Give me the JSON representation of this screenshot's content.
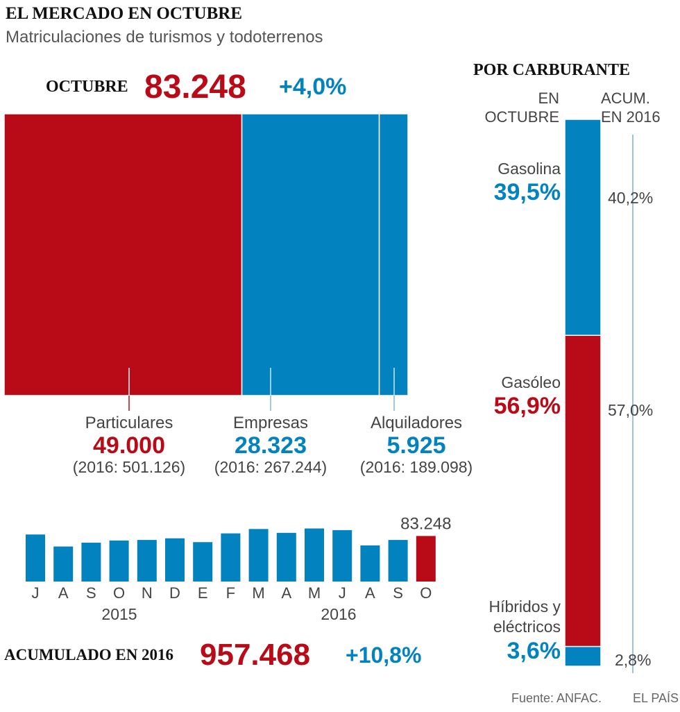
{
  "header": {
    "title": "EL MERCADO EN OCTUBRE",
    "subtitle": "Matriculaciones de turismos y todoterrenos"
  },
  "october": {
    "label": "OCTUBRE",
    "total": "83.248",
    "change": "+4,0%"
  },
  "segments": [
    {
      "name": "Particulares",
      "value": 49000,
      "value_label": "49.000",
      "ytd_label": "(2016: 501.126)",
      "color": "#b90a17"
    },
    {
      "name": "Empresas",
      "value": 28323,
      "value_label": "28.323",
      "ytd_label": "(2016: 267.244)",
      "color": "#0283c0"
    },
    {
      "name": "Alquiladores",
      "value": 5925,
      "value_label": "5.925",
      "ytd_label": "(2016: 189.098)",
      "color": "#0283c0"
    }
  ],
  "monthly": {
    "months": [
      "J",
      "A",
      "S",
      "O",
      "N",
      "D",
      "E",
      "F",
      "M",
      "A",
      "M",
      "J",
      "A",
      "S",
      "O"
    ],
    "values": [
      86000,
      64000,
      71000,
      75000,
      76000,
      79000,
      72000,
      88000,
      96000,
      89000,
      97000,
      94000,
      66000,
      76000,
      83248
    ],
    "highlight_label": "83.248",
    "year_labels": [
      "2015",
      "2016"
    ],
    "color": "#0283c0",
    "highlight_color": "#b90a17"
  },
  "ytd": {
    "label": "ACUMULADO EN 2016",
    "total": "957.468",
    "change": "+10,8%"
  },
  "fuel": {
    "title": "POR CARBURANTE",
    "col_october": "EN OCTUBRE",
    "col_ytd": "ACUM. EN 2016",
    "items": [
      {
        "name": "Gasolina",
        "october": 39.5,
        "october_label": "39,5%",
        "ytd_label": "40,2%",
        "color": "#0283c0"
      },
      {
        "name": "Gasóleo",
        "october": 56.9,
        "october_label": "56,9%",
        "ytd_label": "57,0%",
        "color": "#b90a17"
      },
      {
        "name": "Híbridos y eléctricos",
        "october": 3.6,
        "october_label": "3,6%",
        "ytd_label": "2,8%",
        "color": "#0283c0"
      }
    ]
  },
  "chart_data": [
    {
      "type": "bar",
      "title": "OCTUBRE",
      "categories": [
        "Particulares",
        "Empresas",
        "Alquiladores"
      ],
      "values": [
        49000,
        28323,
        5925
      ]
    },
    {
      "type": "bar",
      "categories": [
        "J",
        "A",
        "S",
        "O",
        "N",
        "D",
        "E",
        "F",
        "M",
        "A",
        "M",
        "J",
        "A",
        "S",
        "O"
      ],
      "values": [
        86000,
        64000,
        71000,
        75000,
        76000,
        79000,
        72000,
        88000,
        96000,
        89000,
        97000,
        94000,
        66000,
        76000,
        83248
      ]
    },
    {
      "type": "bar",
      "title": "POR CARBURANTE",
      "categories": [
        "Gasolina",
        "Gasóleo",
        "Híbridos y eléctricos"
      ],
      "series": [
        {
          "name": "EN OCTUBRE",
          "values": [
            39.5,
            56.9,
            3.6
          ]
        },
        {
          "name": "ACUM. EN 2016",
          "values": [
            40.2,
            57.0,
            2.8
          ]
        }
      ],
      "ylim": [
        0,
        100
      ]
    }
  ],
  "footer": {
    "source": "Fuente: ANFAC.",
    "credit": "EL PAÍS"
  }
}
